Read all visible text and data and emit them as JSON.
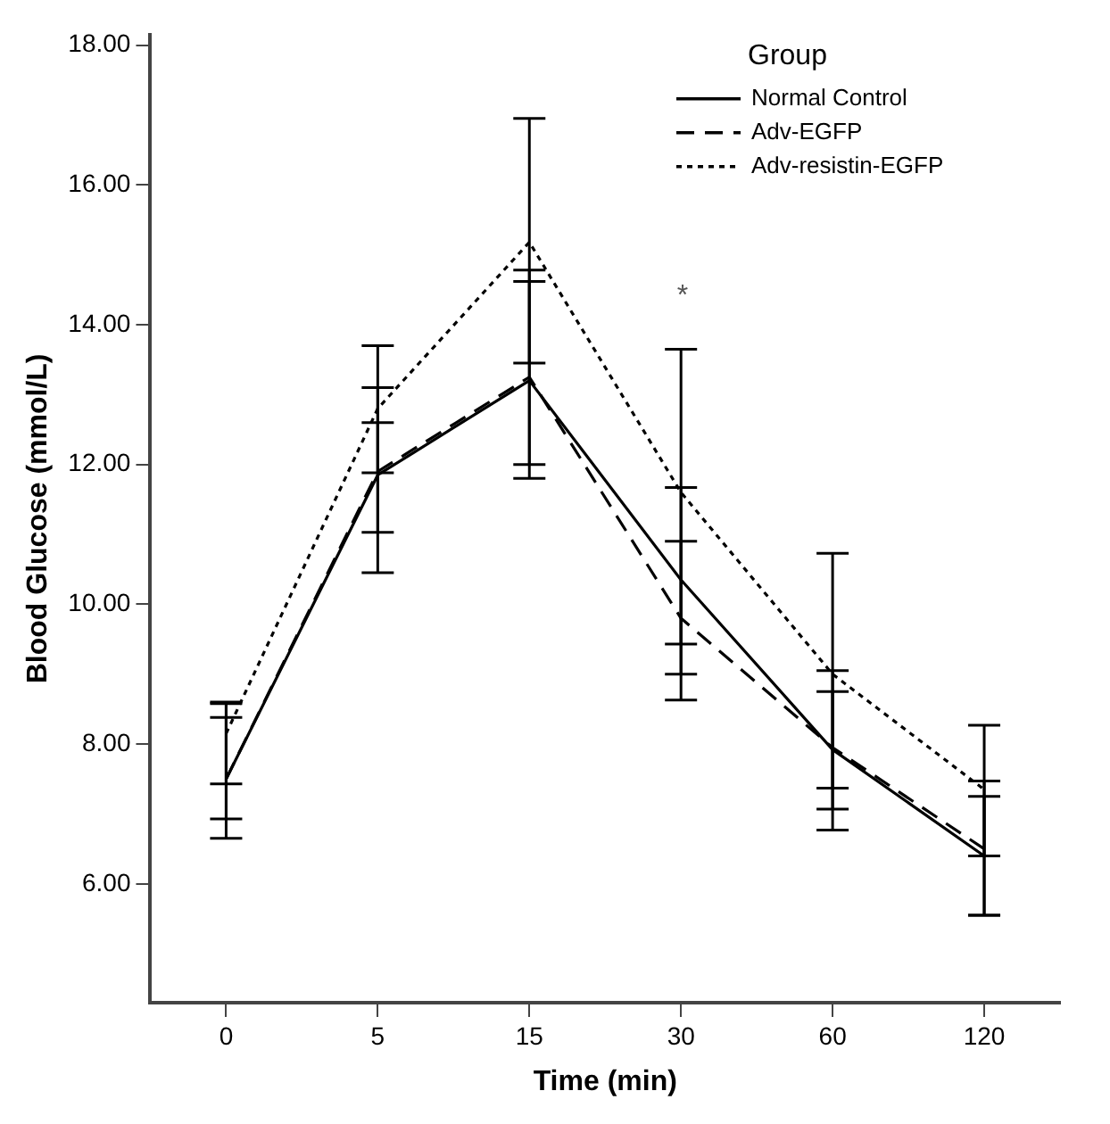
{
  "chart_data": {
    "type": "line",
    "xlabel": "Time (min)",
    "ylabel": "Blood Glucose (mmol/L)",
    "legend_title": "Group",
    "legend": "top right",
    "grid": false,
    "marker": "none",
    "categories": [
      "0",
      "5",
      "15",
      "30",
      "60",
      "120"
    ],
    "ylim": [
      4.3,
      18.15
    ],
    "yticks": [
      {
        "value": 6,
        "label": "6.00"
      },
      {
        "value": 8,
        "label": "8.00"
      },
      {
        "value": 10,
        "label": "10.00"
      },
      {
        "value": 12,
        "label": "12.00"
      },
      {
        "value": 14,
        "label": "14.00"
      },
      {
        "value": 16,
        "label": "16.00"
      },
      {
        "value": 18,
        "label": "18.00"
      }
    ],
    "series": [
      {
        "name": "Normal Control",
        "color": "#000000",
        "line_style": "solid",
        "values": [
          7.5,
          11.85,
          13.2,
          10.35,
          7.92,
          6.4
        ],
        "errors": [
          [
            6.65,
            8.58
          ],
          [
            11.03,
            12.6
          ],
          [
            11.8,
            14.62
          ],
          [
            9.0,
            11.67
          ],
          [
            7.07,
            8.75
          ],
          [
            5.55,
            7.25
          ]
        ]
      },
      {
        "name": "Adv-EGFP",
        "color": "#000000",
        "line_style": "dashed",
        "values": [
          7.5,
          11.9,
          13.25,
          9.8,
          7.95,
          6.5
        ],
        "errors": [
          [
            6.93,
            8.38
          ],
          [
            10.45,
            13.1
          ],
          [
            12.0,
            14.78
          ],
          [
            8.63,
            10.9
          ],
          [
            6.77,
            9.05
          ],
          [
            5.55,
            7.47
          ]
        ]
      },
      {
        "name": "Adv-resistin-EGFP",
        "color": "#000000",
        "line_style": "dotted",
        "values": [
          8.15,
          12.8,
          15.18,
          11.6,
          9.0,
          7.35
        ],
        "errors": [
          [
            7.43,
            8.6
          ],
          [
            11.88,
            13.7
          ],
          [
            13.45,
            16.95
          ],
          [
            9.43,
            13.65
          ],
          [
            7.37,
            10.73
          ],
          [
            6.4,
            8.27
          ]
        ]
      }
    ],
    "annotations": [
      "*"
    ]
  }
}
